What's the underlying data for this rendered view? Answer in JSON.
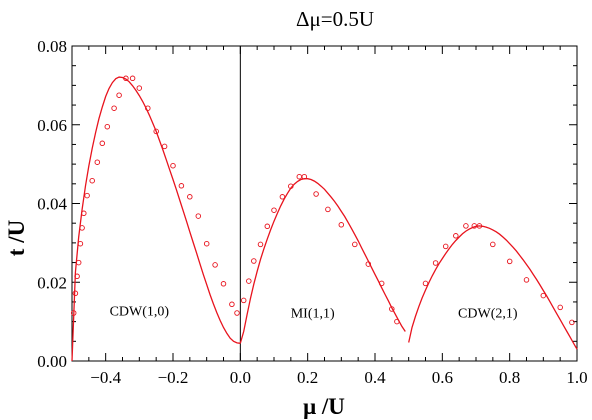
{
  "chart_data": {
    "type": "line",
    "title": "Δμ=0.5U",
    "xlabel": "μ /U",
    "ylabel": "t /U",
    "xlim": [
      -0.5,
      1.0
    ],
    "ylim": [
      0.0,
      0.08
    ],
    "x_ticks": [
      -0.4,
      -0.2,
      0.0,
      0.2,
      0.4,
      0.6,
      0.8,
      1.0
    ],
    "x_tick_labels": [
      "−0.4",
      "−0.2",
      "0.0",
      "0.2",
      "0.4",
      "0.6",
      "0.8",
      "1.0"
    ],
    "y_ticks": [
      0.0,
      0.02,
      0.04,
      0.06,
      0.08
    ],
    "y_tick_labels": [
      "0.00",
      "0.02",
      "0.04",
      "0.06",
      "0.08"
    ],
    "grid": false,
    "vertical_reference_line_x": 0.0,
    "line_color": "#e8141e",
    "marker_color": "#e8141e",
    "regions": [
      {
        "label": "CDW(1,0)",
        "x": -0.3,
        "y": 0.0115
      },
      {
        "label": "MI(1,1)",
        "x": 0.215,
        "y": 0.011
      },
      {
        "label": "CDW(2,1)",
        "x": 0.735,
        "y": 0.011
      }
    ],
    "series": [
      {
        "type": "line",
        "x": [
          -0.5,
          -0.49,
          -0.48,
          -0.47,
          -0.46,
          -0.45,
          -0.44,
          -0.43,
          -0.42,
          -0.41,
          -0.4,
          -0.39,
          -0.38,
          -0.37,
          -0.36,
          -0.35,
          -0.34,
          -0.33,
          -0.32,
          -0.31,
          -0.3,
          -0.29,
          -0.28,
          -0.27,
          -0.26,
          -0.25,
          -0.24,
          -0.23,
          -0.22,
          -0.21,
          -0.2,
          -0.19,
          -0.18,
          -0.17,
          -0.16,
          -0.15,
          -0.14,
          -0.13,
          -0.12,
          -0.11,
          -0.1,
          -0.09,
          -0.08,
          -0.07,
          -0.06,
          -0.05,
          -0.04,
          -0.03,
          -0.02,
          -0.01,
          0.0
        ],
        "y": [
          0.0,
          0.0225,
          0.0315,
          0.0385,
          0.0445,
          0.0495,
          0.054,
          0.058,
          0.0615,
          0.0645,
          0.0672,
          0.0692,
          0.0707,
          0.0717,
          0.0721,
          0.072,
          0.0716,
          0.0709,
          0.0699,
          0.0687,
          0.0674,
          0.0659,
          0.0642,
          0.0624,
          0.0604,
          0.0583,
          0.056,
          0.0536,
          0.0511,
          0.0486,
          0.0461,
          0.0435,
          0.0409,
          0.0382,
          0.0355,
          0.0328,
          0.0301,
          0.0274,
          0.0247,
          0.022,
          0.0194,
          0.0169,
          0.0145,
          0.0123,
          0.0103,
          0.0085,
          0.007,
          0.0058,
          0.005,
          0.0046,
          0.0045
        ]
      },
      {
        "type": "line",
        "x": [
          0.0,
          0.01,
          0.02,
          0.03,
          0.04,
          0.05,
          0.06,
          0.07,
          0.08,
          0.09,
          0.1,
          0.11,
          0.12,
          0.13,
          0.14,
          0.15,
          0.16,
          0.17,
          0.18,
          0.19,
          0.2,
          0.21,
          0.22,
          0.23,
          0.24,
          0.25,
          0.26,
          0.27,
          0.28,
          0.29,
          0.3,
          0.31,
          0.32,
          0.33,
          0.34,
          0.35,
          0.36,
          0.37,
          0.38,
          0.39,
          0.4,
          0.41,
          0.42,
          0.43,
          0.44,
          0.45,
          0.46,
          0.47,
          0.48,
          0.49
        ],
        "y": [
          0.0045,
          0.0075,
          0.0118,
          0.0158,
          0.0195,
          0.0228,
          0.0258,
          0.0285,
          0.031,
          0.0333,
          0.0355,
          0.0375,
          0.0394,
          0.0411,
          0.0426,
          0.0439,
          0.0449,
          0.0456,
          0.0461,
          0.0463,
          0.0463,
          0.0461,
          0.0457,
          0.0451,
          0.0444,
          0.0436,
          0.0426,
          0.0416,
          0.0405,
          0.0393,
          0.038,
          0.0367,
          0.0352,
          0.0337,
          0.0321,
          0.0305,
          0.0288,
          0.0271,
          0.0254,
          0.0237,
          0.022,
          0.0203,
          0.0186,
          0.0169,
          0.0152,
          0.0135,
          0.0119,
          0.0103,
          0.0088,
          0.0075
        ]
      },
      {
        "type": "line",
        "x": [
          0.5,
          0.51,
          0.52,
          0.53,
          0.54,
          0.55,
          0.56,
          0.57,
          0.58,
          0.59,
          0.6,
          0.61,
          0.62,
          0.63,
          0.64,
          0.65,
          0.66,
          0.67,
          0.68,
          0.69,
          0.7,
          0.71,
          0.72,
          0.73,
          0.74,
          0.75,
          0.76,
          0.77,
          0.78,
          0.79,
          0.8,
          0.81,
          0.82,
          0.83,
          0.84,
          0.85,
          0.86,
          0.87,
          0.88,
          0.89,
          0.9,
          0.91,
          0.92,
          0.93,
          0.94,
          0.95,
          0.96,
          0.97,
          0.98,
          0.99,
          1.0
        ],
        "y": [
          0.0047,
          0.0085,
          0.0113,
          0.0138,
          0.016,
          0.018,
          0.0199,
          0.0216,
          0.0232,
          0.0247,
          0.026,
          0.0273,
          0.0285,
          0.0296,
          0.0306,
          0.0315,
          0.0323,
          0.033,
          0.0335,
          0.0339,
          0.0342,
          0.0343,
          0.0342,
          0.034,
          0.0337,
          0.0333,
          0.0328,
          0.0322,
          0.0315,
          0.0307,
          0.0298,
          0.0289,
          0.0279,
          0.0268,
          0.0257,
          0.0245,
          0.0233,
          0.022,
          0.0207,
          0.0193,
          0.0179,
          0.0165,
          0.015,
          0.0135,
          0.012,
          0.0105,
          0.009,
          0.0075,
          0.006,
          0.0045,
          0.003
        ]
      },
      {
        "type": "scatter",
        "marker": "open-circle",
        "x": [
          -0.495,
          -0.49,
          -0.485,
          -0.48,
          -0.475,
          -0.47,
          -0.465,
          -0.455,
          -0.44,
          -0.425,
          -0.41,
          -0.395,
          -0.375,
          -0.36,
          -0.34,
          -0.32,
          -0.3,
          -0.275,
          -0.25,
          -0.225,
          -0.2,
          -0.175,
          -0.15,
          -0.125,
          -0.1,
          -0.075,
          -0.05,
          -0.025,
          -0.01,
          0.01,
          0.025,
          0.04,
          0.06,
          0.08,
          0.1,
          0.125,
          0.15,
          0.175,
          0.19,
          0.225,
          0.26,
          0.3,
          0.34,
          0.38,
          0.42,
          0.45,
          0.465,
          0.55,
          0.58,
          0.61,
          0.64,
          0.67,
          0.695,
          0.71,
          0.75,
          0.8,
          0.85,
          0.9,
          0.95,
          0.985
        ],
        "y": [
          0.0122,
          0.0172,
          0.0215,
          0.025,
          0.0298,
          0.0338,
          0.0375,
          0.042,
          0.0458,
          0.0505,
          0.0553,
          0.0595,
          0.0642,
          0.0675,
          0.0718,
          0.0718,
          0.0693,
          0.0642,
          0.0583,
          0.0545,
          0.0496,
          0.0445,
          0.0417,
          0.0368,
          0.0298,
          0.0244,
          0.0196,
          0.0144,
          0.0122,
          0.0154,
          0.0203,
          0.0254,
          0.0296,
          0.0342,
          0.0383,
          0.0417,
          0.0444,
          0.0468,
          0.0468,
          0.0424,
          0.0385,
          0.0346,
          0.0296,
          0.0246,
          0.0197,
          0.0132,
          0.01,
          0.0197,
          0.0249,
          0.0291,
          0.0318,
          0.0343,
          0.0343,
          0.0343,
          0.0296,
          0.0253,
          0.0206,
          0.0166,
          0.0136,
          0.0098
        ]
      }
    ]
  }
}
